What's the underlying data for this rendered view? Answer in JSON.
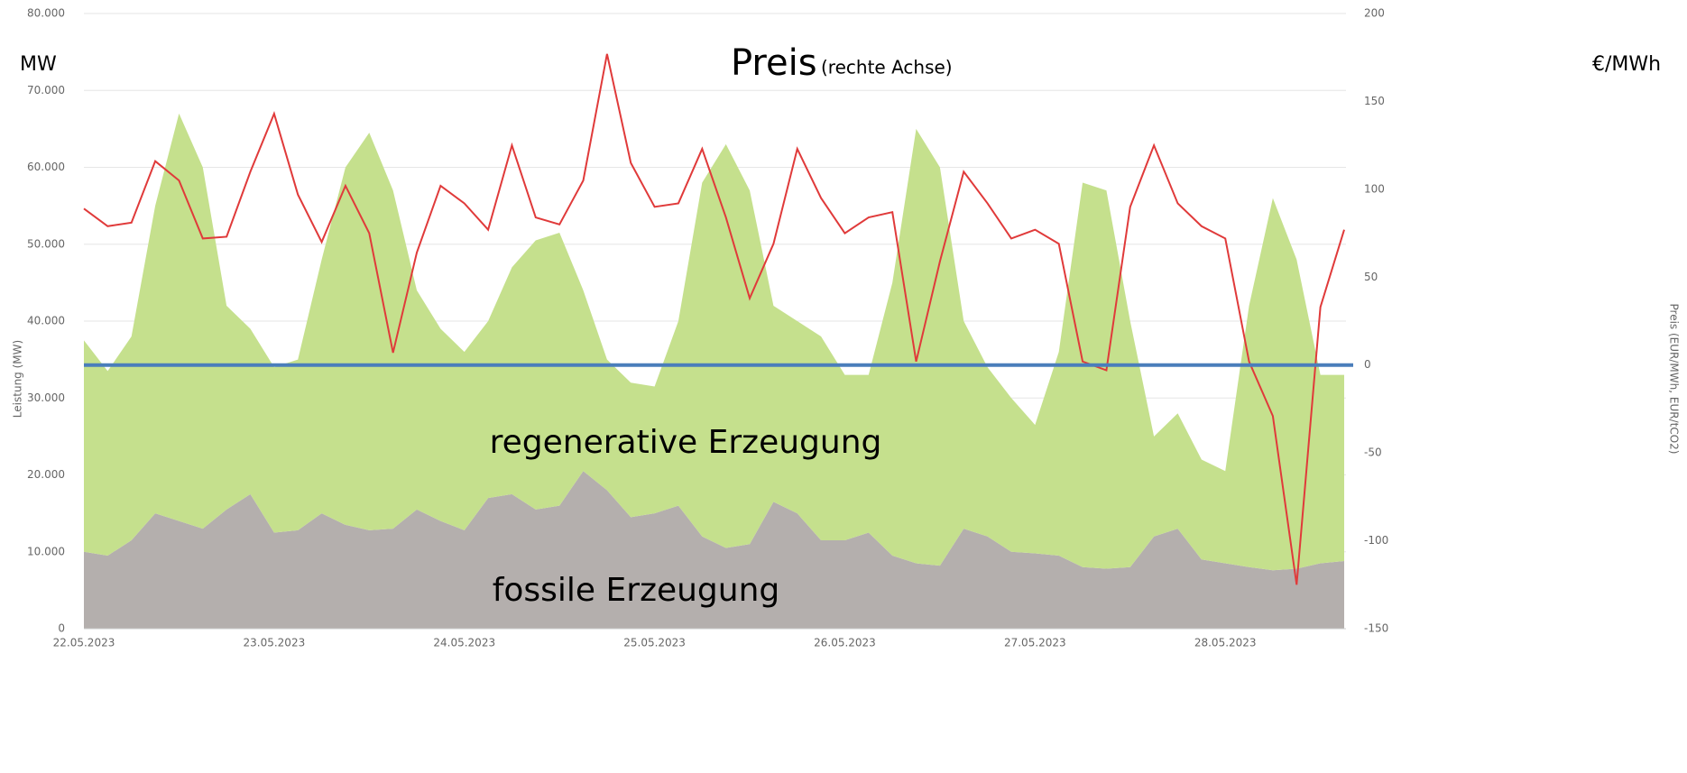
{
  "chart_data": {
    "type": "stacked_area_line",
    "y_label": "Leistung (MW)",
    "y2_label": "Preis (EUR/MWh, EUR/tCO2)",
    "annotations": {
      "left_unit": "MW",
      "right_unit": "€/MWh",
      "price_hint": "(rechte Achse)"
    },
    "categories": [
      "22.05.2023",
      null,
      null,
      null,
      null,
      null,
      null,
      null,
      "23.05.2023",
      null,
      null,
      null,
      null,
      null,
      null,
      null,
      "24.05.2023",
      null,
      null,
      null,
      null,
      null,
      null,
      null,
      "25.05.2023",
      null,
      null,
      null,
      null,
      null,
      null,
      null,
      "26.05.2023",
      null,
      null,
      null,
      null,
      null,
      null,
      null,
      "27.05.2023",
      null,
      null,
      null,
      null,
      null,
      null,
      null,
      "28.05.2023",
      null,
      null,
      null,
      null,
      null
    ],
    "series": [
      {
        "name": "fossile Erzeugung",
        "color": "#b4afad",
        "values": [
          10000,
          9500,
          11500,
          15000,
          14000,
          13000,
          15500,
          17500,
          12500,
          12800,
          15000,
          13500,
          12800,
          13000,
          15500,
          14000,
          12800,
          17000,
          17500,
          15500,
          16000,
          20500,
          18000,
          14500,
          15000,
          16000,
          12000,
          10500,
          11000,
          16500,
          15000,
          11500,
          11500,
          12500,
          9500,
          8500,
          8200,
          13000,
          12000,
          10000,
          9800,
          9500,
          8000,
          7800,
          8000,
          12000,
          13000,
          9000,
          8500,
          8000,
          7600,
          7800,
          8500,
          8800
        ]
      },
      {
        "name": "regenerative Erzeugung",
        "color": "#c5e08d",
        "values": [
          27500,
          24000,
          26500,
          40000,
          53000,
          47000,
          26500,
          21500,
          21500,
          22200,
          33000,
          46500,
          51700,
          44000,
          28500,
          25000,
          23200,
          23000,
          29500,
          35000,
          35500,
          23500,
          17000,
          17500,
          16500,
          24000,
          46000,
          52500,
          46000,
          25500,
          25000,
          26500,
          21500,
          20500,
          35500,
          56500,
          51800,
          27000,
          22000,
          20000,
          16700,
          26500,
          50000,
          49200,
          32000,
          13000,
          15000,
          13000,
          12000,
          34000,
          48400,
          40200,
          24500,
          24200
        ]
      },
      {
        "name": "Preis",
        "color": "#e03a3a",
        "axis": "y2",
        "values": [
          89,
          79,
          81,
          116,
          105,
          72,
          73,
          110,
          143,
          97,
          70,
          102,
          75,
          7,
          64,
          102,
          92,
          77,
          125,
          84,
          80,
          105,
          177,
          115,
          90,
          92,
          123,
          84,
          38,
          69,
          123,
          95,
          75,
          84,
          87,
          2,
          59,
          110,
          92,
          72,
          77,
          69,
          2,
          -3,
          90,
          125,
          92,
          79,
          72,
          2,
          -29,
          -125,
          33,
          77
        ]
      }
    ],
    "zero_line": {
      "axis": "y2",
      "value": 0,
      "color": "#4a7ebb"
    },
    "ylim": [
      0,
      80000
    ],
    "yticks": [
      0,
      {
        "value": 10000,
        "label": "10.000"
      },
      {
        "value": 20000,
        "label": "20.000"
      },
      {
        "value": 30000,
        "label": "30.000"
      },
      {
        "value": 40000,
        "label": "40.000"
      },
      {
        "value": 50000,
        "label": "50.000"
      },
      {
        "value": 60000,
        "label": "60.000"
      },
      {
        "value": 70000,
        "label": "70.000"
      },
      {
        "value": 80000,
        "label": "80.000"
      }
    ],
    "y2lim": [
      -150,
      200
    ],
    "y2ticks": [
      -150,
      -100,
      -50,
      0,
      50,
      100,
      150,
      200
    ],
    "grid": true
  }
}
